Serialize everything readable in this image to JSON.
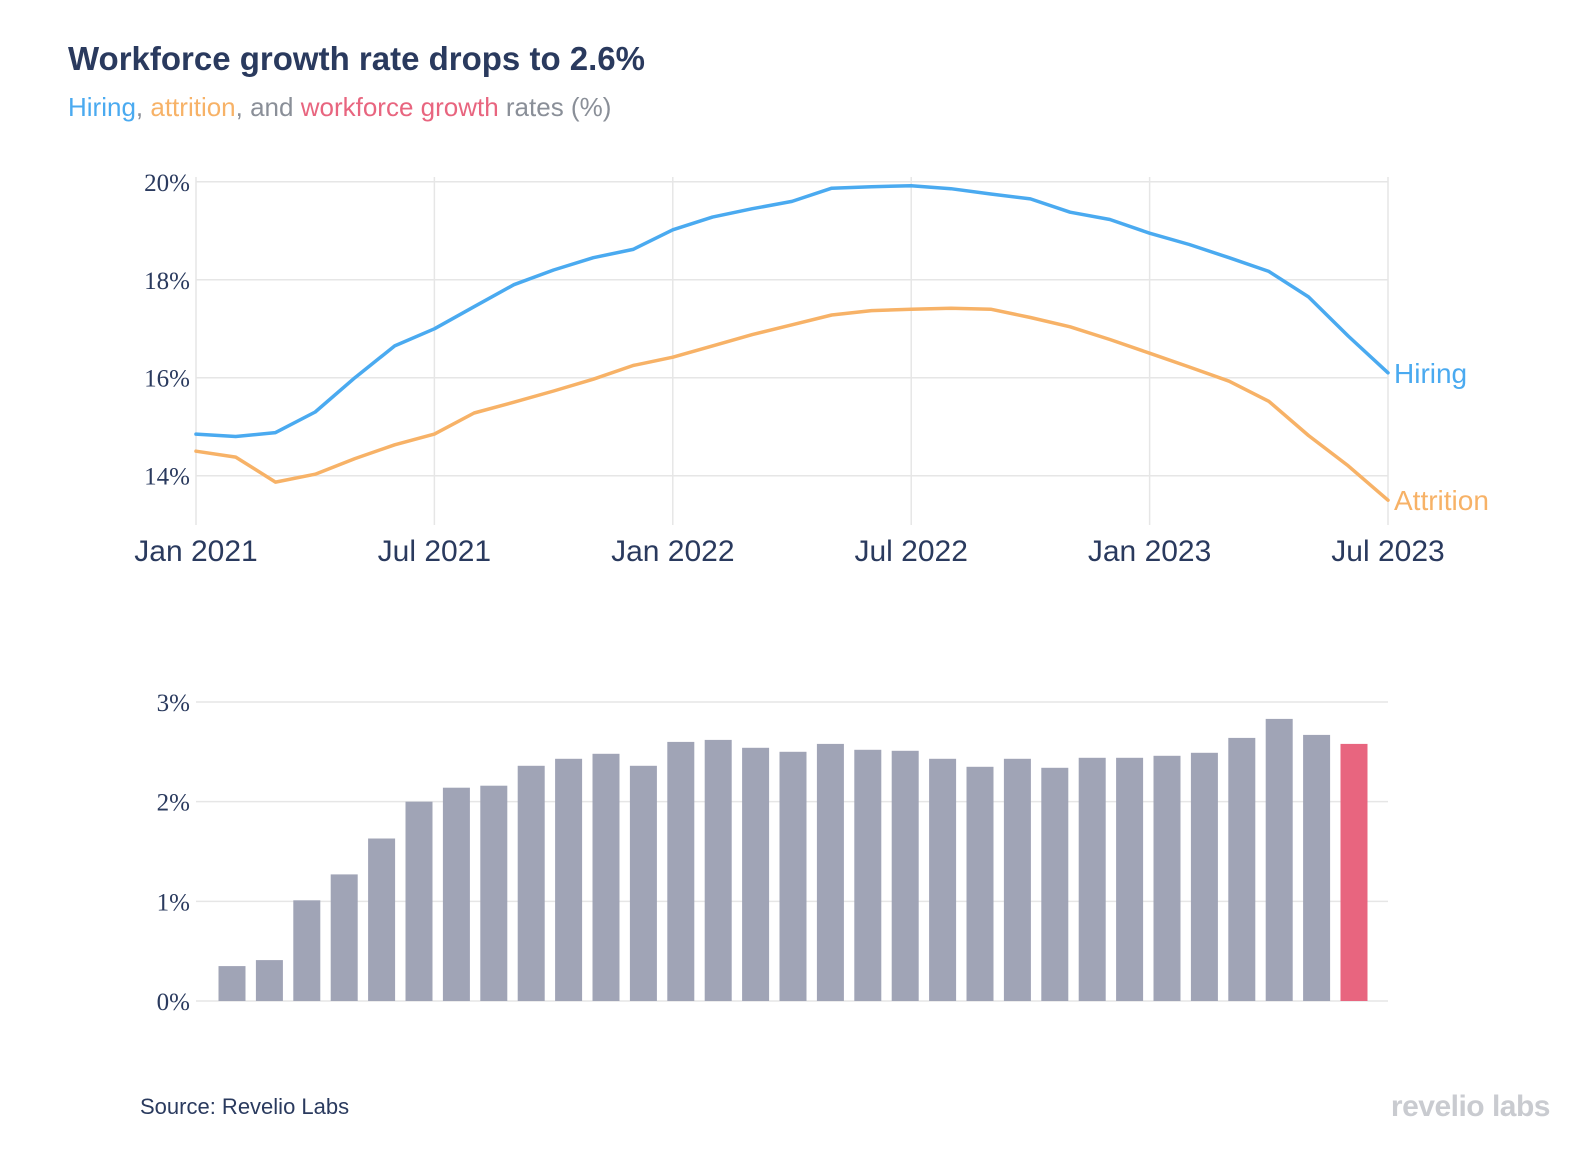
{
  "title": "Workforce growth rate drops to 2.6%",
  "subtitle": {
    "hiring": "Hiring",
    "sep1": ", ",
    "attrition": "attrition",
    "sep2": ", and ",
    "growth": "workforce growth",
    "rest": " rates (%)"
  },
  "source": "Source: Revelio Labs",
  "logo": "revelio labs",
  "colors": {
    "hiring": "#4aaaf0",
    "attrition": "#f7b267",
    "growth": "#e8657f",
    "bar": "#a0a4b6",
    "grid": "#e6e6e6",
    "text": "#2a3a5e",
    "subtitle_gray": "#8a8f98"
  },
  "chart_data": [
    {
      "type": "line",
      "x": [
        "2021-01",
        "2021-02",
        "2021-03",
        "2021-04",
        "2021-05",
        "2021-06",
        "2021-07",
        "2021-08",
        "2021-09",
        "2021-10",
        "2021-11",
        "2021-12",
        "2022-01",
        "2022-02",
        "2022-03",
        "2022-04",
        "2022-05",
        "2022-06",
        "2022-07",
        "2022-08",
        "2022-09",
        "2022-10",
        "2022-11",
        "2022-12",
        "2023-01",
        "2023-02",
        "2023-03",
        "2023-04",
        "2023-05",
        "2023-06",
        "2023-07"
      ],
      "x_tick_labels": [
        "Jan 2021",
        "Jul 2021",
        "Jan 2022",
        "Jul 2022",
        "Jan 2023",
        "Jul 2023"
      ],
      "x_tick_values": [
        "2021-01",
        "2021-07",
        "2022-01",
        "2022-07",
        "2023-01",
        "2023-07"
      ],
      "y_tick_labels": [
        "14%",
        "16%",
        "18%",
        "20%"
      ],
      "y_tick_values": [
        14,
        16,
        18,
        20
      ],
      "ylim": [
        13.3,
        20.2
      ],
      "grid": true,
      "legend": "end-of-line labels",
      "series": [
        {
          "name": "Hiring",
          "color": "#4aaaf0",
          "values": [
            14.85,
            14.8,
            14.88,
            15.3,
            16.0,
            16.65,
            17.0,
            17.45,
            17.9,
            18.2,
            18.45,
            18.62,
            19.02,
            19.28,
            19.45,
            19.6,
            19.87,
            19.9,
            19.92,
            19.86,
            19.75,
            19.65,
            19.38,
            19.23,
            18.95,
            18.72,
            18.45,
            18.17,
            17.65,
            16.85,
            16.1
          ]
        },
        {
          "name": "Attrition",
          "color": "#f7b267",
          "values": [
            14.5,
            14.38,
            13.87,
            14.03,
            14.35,
            14.63,
            14.85,
            15.28,
            15.5,
            15.73,
            15.97,
            16.25,
            16.42,
            16.65,
            16.88,
            17.08,
            17.28,
            17.37,
            17.4,
            17.42,
            17.4,
            17.23,
            17.04,
            16.78,
            16.5,
            16.22,
            15.93,
            15.52,
            14.82,
            14.2,
            13.5
          ]
        }
      ]
    },
    {
      "type": "bar",
      "x": [
        "2021-01",
        "2021-02",
        "2021-03",
        "2021-04",
        "2021-05",
        "2021-06",
        "2021-07",
        "2021-08",
        "2021-09",
        "2021-10",
        "2021-11",
        "2021-12",
        "2022-01",
        "2022-02",
        "2022-03",
        "2022-04",
        "2022-05",
        "2022-06",
        "2022-07",
        "2022-08",
        "2022-09",
        "2022-10",
        "2022-11",
        "2022-12",
        "2023-01",
        "2023-02",
        "2023-03",
        "2023-04",
        "2023-05",
        "2023-06",
        "2023-07"
      ],
      "y_tick_labels": [
        "0%",
        "1%",
        "2%",
        "3%"
      ],
      "y_tick_values": [
        0,
        1,
        2,
        3
      ],
      "ylim": [
        0,
        3
      ],
      "grid": true,
      "series": [
        {
          "name": "Workforce growth",
          "values": [
            0.35,
            0.41,
            1.01,
            1.27,
            1.63,
            2.0,
            2.14,
            2.16,
            2.36,
            2.43,
            2.48,
            2.36,
            2.6,
            2.62,
            2.54,
            2.5,
            2.58,
            2.52,
            2.51,
            2.43,
            2.35,
            2.43,
            2.34,
            2.44,
            2.44,
            2.46,
            2.49,
            2.64,
            2.83,
            2.67,
            2.58
          ],
          "highlight_last": true
        }
      ]
    }
  ]
}
